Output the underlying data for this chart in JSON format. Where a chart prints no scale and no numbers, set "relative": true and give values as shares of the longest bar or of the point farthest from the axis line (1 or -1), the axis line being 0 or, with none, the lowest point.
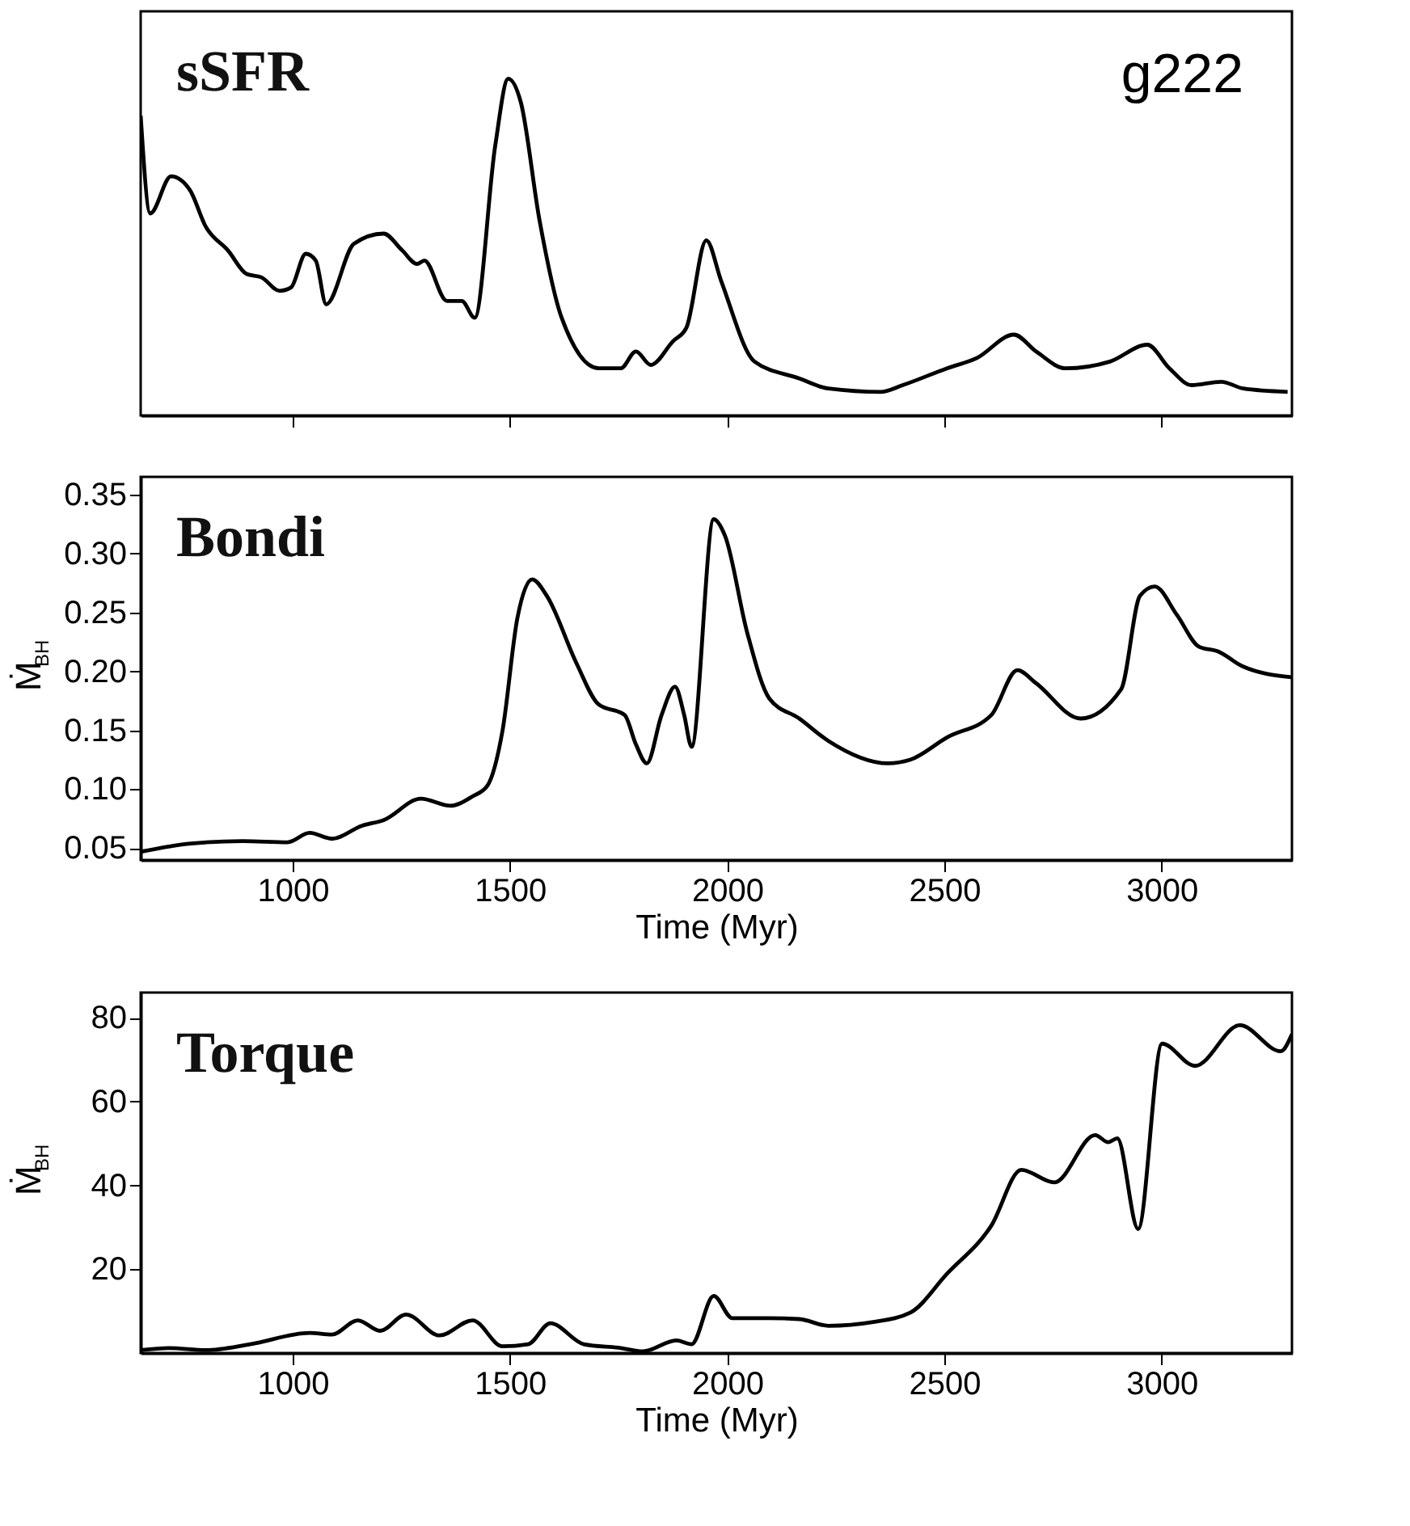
{
  "chart_data": [
    {
      "type": "line",
      "relative": true,
      "tick_labels": false,
      "grid": false,
      "annotations": [
        "sSFR",
        "g222"
      ],
      "xlim": [
        650,
        3300
      ],
      "xticks": [
        1000,
        1500,
        2000,
        2500,
        3000
      ],
      "series": [
        {
          "color": "#000000",
          "x": [
            650,
            672,
            720,
            763,
            800,
            851,
            894,
            928,
            970,
            996,
            1030,
            1053,
            1077,
            1141,
            1209,
            1252,
            1286,
            1303,
            1355,
            1389,
            1419,
            1466,
            1496,
            1525,
            1568,
            1619,
            1704,
            1755,
            1790,
            1824,
            1875,
            1906,
            1952,
            1986,
            2063,
            2166,
            2233,
            2353,
            2404,
            2506,
            2574,
            2660,
            2711,
            2779,
            2881,
            2967,
            3018,
            3069,
            3137,
            3188,
            3290
          ],
          "values": [
            0.89,
            0.6,
            0.71,
            0.67,
            0.56,
            0.49,
            0.42,
            0.41,
            0.37,
            0.38,
            0.48,
            0.46,
            0.33,
            0.51,
            0.54,
            0.49,
            0.45,
            0.46,
            0.34,
            0.34,
            0.29,
            0.8,
            1.0,
            0.93,
            0.58,
            0.29,
            0.14,
            0.14,
            0.19,
            0.15,
            0.22,
            0.26,
            0.52,
            0.4,
            0.16,
            0.11,
            0.08,
            0.07,
            0.09,
            0.14,
            0.17,
            0.24,
            0.19,
            0.14,
            0.16,
            0.21,
            0.14,
            0.09,
            0.1,
            0.08,
            0.07
          ]
        }
      ]
    },
    {
      "type": "line",
      "xlabel": "Time  (Myr)",
      "ylabel": "Ṁ$_{BH}$",
      "grid": false,
      "annotations": [
        "Bondi"
      ],
      "xlim": [
        650,
        3300
      ],
      "xticks": [
        1000,
        1500,
        2000,
        2500,
        3000
      ],
      "ylim": [
        0.04,
        0.365
      ],
      "yticks": [
        0.05,
        {
          "value": 0.1,
          "label": "0.10"
        },
        0.15,
        {
          "value": 0.2,
          "label": "0.20"
        },
        0.25,
        {
          "value": 0.3,
          "label": "0.30"
        },
        0.35
      ],
      "series": [
        {
          "color": "#000000",
          "x": [
            650,
            766,
            885,
            988,
            1039,
            1090,
            1159,
            1210,
            1295,
            1363,
            1414,
            1448,
            1483,
            1517,
            1551,
            1585,
            1653,
            1704,
            1764,
            1790,
            1815,
            1849,
            1880,
            1901,
            1918,
            1969,
            1995,
            2046,
            2097,
            2166,
            2233,
            2370,
            2421,
            2506,
            2608,
            2668,
            2711,
            2813,
            2907,
            2950,
            2984,
            3035,
            3086,
            3129,
            3188,
            3299
          ],
          "values": [
            0.047,
            0.054,
            0.056,
            0.055,
            0.063,
            0.058,
            0.069,
            0.074,
            0.092,
            0.086,
            0.094,
            0.103,
            0.15,
            0.245,
            0.278,
            0.264,
            0.207,
            0.172,
            0.163,
            0.138,
            0.122,
            0.163,
            0.187,
            0.163,
            0.136,
            0.329,
            0.315,
            0.233,
            0.177,
            0.16,
            0.141,
            0.122,
            0.125,
            0.144,
            0.163,
            0.201,
            0.19,
            0.16,
            0.185,
            0.264,
            0.272,
            0.248,
            0.221,
            0.217,
            0.204,
            0.195
          ]
        }
      ]
    },
    {
      "type": "line",
      "xlabel": "Time  (Myr)",
      "ylabel": "Ṁ$_{BH}$",
      "grid": false,
      "annotations": [
        "Torque"
      ],
      "xlim": [
        650,
        3300
      ],
      "xticks": [
        1000,
        1500,
        2000,
        2500,
        3000
      ],
      "ylim": [
        0,
        86
      ],
      "yticks": [
        20,
        40,
        60,
        80
      ],
      "series": [
        {
          "color": "#000000",
          "x": [
            650,
            715,
            800,
            902,
            1039,
            1090,
            1150,
            1201,
            1261,
            1338,
            1414,
            1483,
            1542,
            1593,
            1670,
            1755,
            1806,
            1883,
            1918,
            1969,
            2012,
            2097,
            2166,
            2233,
            2336,
            2421,
            2506,
            2608,
            2677,
            2753,
            2847,
            2877,
            2898,
            2946,
            3001,
            3077,
            3180,
            3274,
            3300
          ],
          "values": [
            0.7,
            1.2,
            0.7,
            2.1,
            4.8,
            4.4,
            7.8,
            5.3,
            9.2,
            4.2,
            7.8,
            1.6,
            2.1,
            7.1,
            2.1,
            1.2,
            0.4,
            3.0,
            2.1,
            13.6,
            8.3,
            8.3,
            8.1,
            6.5,
            7.4,
            9.6,
            18.9,
            30.4,
            43.7,
            40.7,
            52.0,
            50.3,
            51.2,
            29.6,
            73.8,
            68.5,
            78.2,
            72.0,
            76.1
          ]
        }
      ]
    }
  ]
}
